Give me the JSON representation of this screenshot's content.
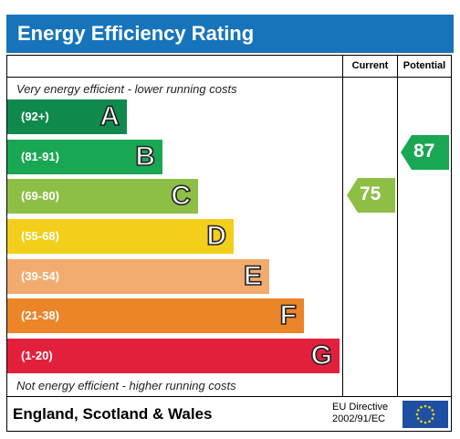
{
  "header": {
    "title": "Energy Efficiency Rating"
  },
  "columns": {
    "current": "Current",
    "potential": "Potential"
  },
  "notes": {
    "top": "Very energy efficient - lower running costs",
    "bottom": "Not energy efficient - higher running costs"
  },
  "bands": [
    {
      "range": "(92+)",
      "letter": "A",
      "color": "#0f8a4c"
    },
    {
      "range": "(81-91)",
      "letter": "B",
      "color": "#1aa753"
    },
    {
      "range": "(69-80)",
      "letter": "C",
      "color": "#8dbe45"
    },
    {
      "range": "(55-68)",
      "letter": "D",
      "color": "#f3ce1a"
    },
    {
      "range": "(39-54)",
      "letter": "E",
      "color": "#f2ab6f"
    },
    {
      "range": "(21-38)",
      "letter": "F",
      "color": "#ec8428"
    },
    {
      "range": "(1-20)",
      "letter": "G",
      "color": "#e3203c"
    }
  ],
  "ratings": {
    "current": {
      "value": "75",
      "color": "#8dbe45"
    },
    "potential": {
      "value": "87",
      "color": "#1aa753"
    }
  },
  "footer": {
    "region": "England, Scotland & Wales",
    "directive_line1": "EU Directive",
    "directive_line2": "2002/91/EC",
    "flag_icon": "eu-flag-icon"
  }
}
